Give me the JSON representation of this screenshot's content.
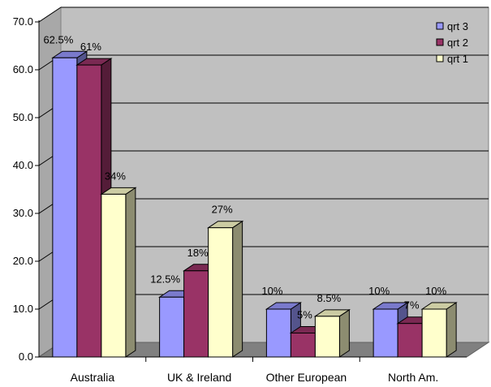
{
  "chart_data": {
    "type": "bar",
    "title": "",
    "xlabel": "",
    "ylabel": "",
    "ylim": [
      0,
      70
    ],
    "yticks": [
      "0.0",
      "10.0",
      "20.0",
      "30.0",
      "40.0",
      "50.0",
      "60.0",
      "70.0"
    ],
    "grid": true,
    "legend_position": "top-right",
    "categories": [
      "Australia",
      "UK & Ireland",
      "Other European",
      "North Am."
    ],
    "series": [
      {
        "name": "qrt 3",
        "color": "#9999ff",
        "values": [
          62.5,
          12.5,
          10,
          10
        ],
        "labels": [
          "62.5%",
          "12.5%",
          "10%",
          "10%"
        ]
      },
      {
        "name": "qrt 2",
        "color": "#993366",
        "values": [
          61,
          18,
          5,
          7
        ],
        "labels": [
          "61%",
          "18%",
          "5%",
          "7%"
        ]
      },
      {
        "name": "qrt 1",
        "color": "#ffffcc",
        "values": [
          34,
          27,
          8.5,
          10
        ],
        "labels": [
          "34%",
          "27%",
          "8.5%",
          "10%"
        ]
      }
    ]
  }
}
